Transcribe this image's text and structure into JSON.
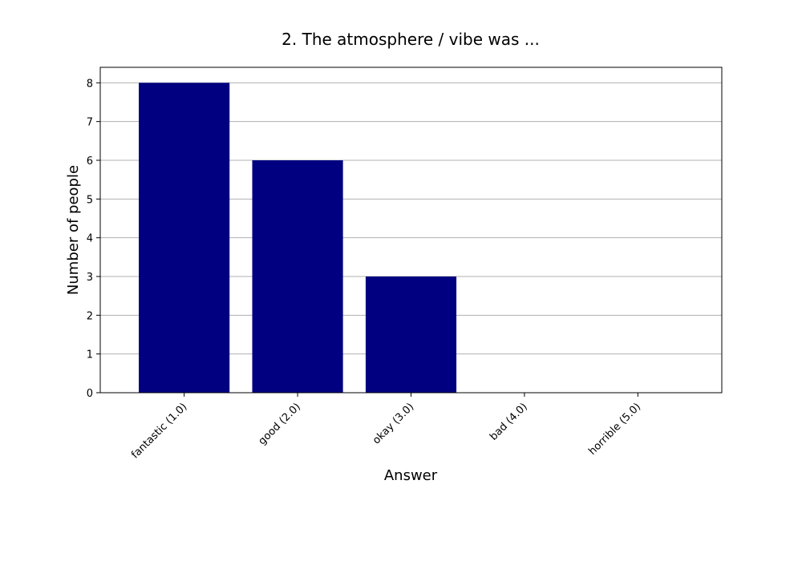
{
  "chart_data": {
    "type": "bar",
    "title": "2. The atmosphere / vibe was ...",
    "xlabel": "Answer",
    "ylabel": "Number of people",
    "categories": [
      "fantastic (1.0)",
      "good (2.0)",
      "okay (3.0)",
      "bad (4.0)",
      "horrible (5.0)"
    ],
    "values": [
      8,
      6,
      3,
      0,
      0
    ],
    "ylim": [
      0,
      8.4
    ],
    "yticks": [
      0,
      1,
      2,
      3,
      4,
      5,
      6,
      7,
      8
    ],
    "grid": "y",
    "bar_color": "#000080"
  }
}
